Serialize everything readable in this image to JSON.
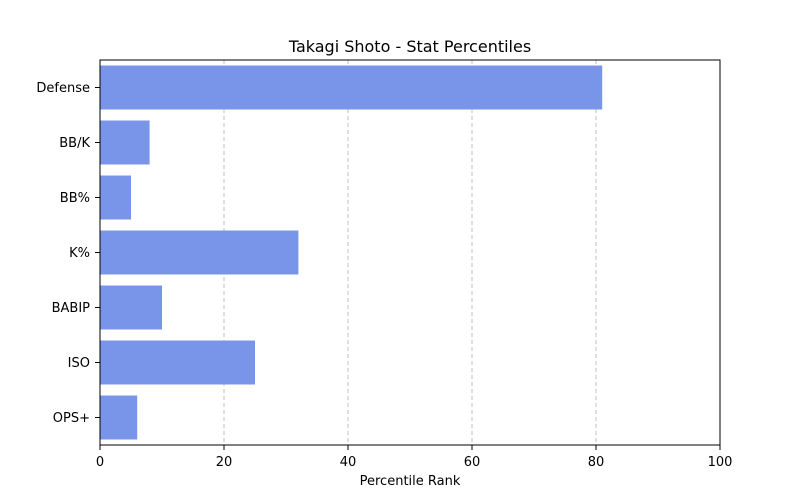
{
  "chart_data": {
    "type": "bar",
    "orientation": "horizontal",
    "title": "Takagi Shoto - Stat Percentiles",
    "xlabel": "Percentile Rank",
    "ylabel": "",
    "xlim": [
      0,
      100
    ],
    "xticks": [
      "0",
      "20",
      "40",
      "60",
      "80",
      "100"
    ],
    "grid": "x-dashed",
    "bar_color": "#7995e9",
    "categories": [
      "Defense",
      "BB/K",
      "BB%",
      "K%",
      "BABIP",
      "ISO",
      "OPS+"
    ],
    "values": [
      81,
      8,
      5,
      32,
      10,
      25,
      6
    ]
  }
}
